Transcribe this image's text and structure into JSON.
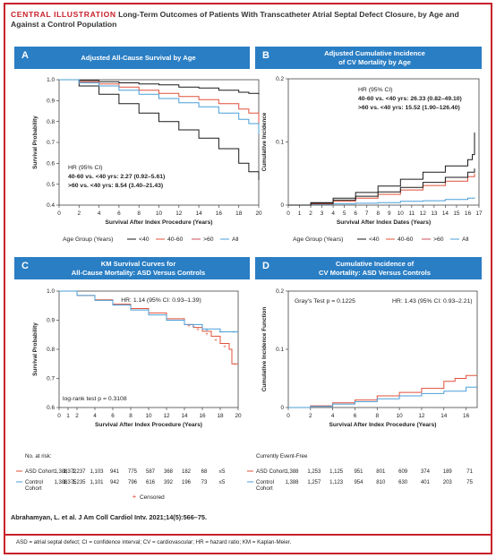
{
  "header": {
    "tag": "CENTRAL ILLUSTRATION",
    "title": "Long-Term Outcomes of Patients With Transcatheter Atrial Septal Defect Closure, by Age and Against a Control Population"
  },
  "panels": [
    {
      "letter": "A",
      "title_lines": [
        "Adjusted All-Cause Survival by Age"
      ]
    },
    {
      "letter": "B",
      "title_lines": [
        "Adjusted Cumulative Incidence",
        "of CV Mortality by Age"
      ]
    },
    {
      "letter": "C",
      "title_lines": [
        "KM Survival Curves for",
        "All-Cause Mortality: ASD Versus Controls"
      ]
    },
    {
      "letter": "D",
      "title_lines": [
        "Cumulative Incidence of",
        "CV Mortality: ASD Versus Controls"
      ]
    }
  ],
  "citation": "Abrahamyan, L. et al. J Am Coll Cardiol Intv. 2021;14(5):566–75.",
  "abbreviations": "ASD = atrial septal defect; CI = confidence interval; CV = cardiovascular; HR = hazard ratio; KM = Kaplan-Meier.",
  "colors": {
    "accent": "#c8202a",
    "banner": "#2a7ec4",
    "lt40": "#1a1a1a",
    "m40_60": "#e0503a",
    "gt60": "#cc4f5a",
    "all": "#4a9fd8",
    "asd": "#e0503a",
    "control": "#4a9fd8"
  },
  "chart_data": [
    {
      "id": "A",
      "type": "line",
      "xlabel": "Survival After Index Procedure (Years)",
      "ylabel": "Survival Probability",
      "xlim": [
        0,
        20
      ],
      "ylim": [
        0.4,
        1.0
      ],
      "xticks": [
        "0",
        "2",
        "4",
        "6",
        "8",
        "10",
        "12",
        "14",
        "16",
        "18",
        "20"
      ],
      "yticks": [
        "0.4",
        "0.5",
        "0.6",
        "0.7",
        "0.8",
        "0.9",
        "1.0"
      ],
      "annotation": [
        "HR (95% CI)",
        "40-60 vs. <40 yrs: 2.27 (0.92–5.61)",
        ">60 vs. <40 yrs: 8.54 (3.40–21.43)"
      ],
      "legend": {
        "title": "Age Group (Years)",
        "entries": [
          "<40",
          "40-60",
          ">60",
          "All"
        ]
      },
      "series": [
        {
          "name": "<40",
          "color": "#1a1a1a",
          "x": [
            0,
            2,
            4,
            6,
            8,
            10,
            12,
            14,
            16,
            18,
            19,
            20
          ],
          "y": [
            1.0,
            0.996,
            0.99,
            0.985,
            0.98,
            0.975,
            0.965,
            0.96,
            0.95,
            0.94,
            0.935,
            0.93
          ]
        },
        {
          "name": "40-60",
          "color": "#e0503a",
          "x": [
            0,
            2,
            4,
            6,
            8,
            10,
            12,
            14,
            16,
            18,
            19,
            20
          ],
          "y": [
            1.0,
            0.99,
            0.98,
            0.965,
            0.95,
            0.935,
            0.92,
            0.905,
            0.885,
            0.86,
            0.84,
            0.79
          ]
        },
        {
          "name": ">60",
          "color": "#1a1a1a",
          "x": [
            0,
            2,
            4,
            6,
            8,
            10,
            12,
            14,
            16,
            18,
            19,
            20
          ],
          "y": [
            1.0,
            0.97,
            0.93,
            0.885,
            0.84,
            0.8,
            0.76,
            0.72,
            0.67,
            0.6,
            0.56,
            0.52
          ]
        },
        {
          "name": "All",
          "color": "#4a9fd8",
          "x": [
            0,
            2,
            4,
            6,
            8,
            10,
            12,
            14,
            16,
            18,
            19,
            20
          ],
          "y": [
            1.0,
            0.985,
            0.97,
            0.95,
            0.93,
            0.91,
            0.89,
            0.87,
            0.84,
            0.81,
            0.79,
            0.74
          ]
        }
      ]
    },
    {
      "id": "B",
      "type": "line",
      "xlabel": "Survival After Index Dates (Years)",
      "ylabel": "Cumulative Incidence",
      "xlim": [
        0,
        17
      ],
      "ylim": [
        0,
        0.2
      ],
      "xticks": [
        "0",
        "1",
        "2",
        "3",
        "4",
        "5",
        "6",
        "7",
        "8",
        "9",
        "10",
        "11",
        "12",
        "13",
        "14",
        "15",
        "16",
        "17"
      ],
      "yticks": [
        "0",
        "0.1",
        "0.2"
      ],
      "annotation": [
        "HR (95% CI)",
        "40-60 vs. <40 yrs: 26.33 (0.82–49.10)",
        ">60 vs. <40 yrs: 15.52 (1.90–126.40)"
      ],
      "legend": {
        "title": "Age Group (Years)",
        "entries": [
          "<40",
          "40-60",
          ">60",
          "All"
        ]
      },
      "series": [
        {
          "name": "<40",
          "color": "#4a9fd8",
          "x": [
            0,
            2,
            4,
            6,
            8,
            10,
            12,
            14,
            16,
            16.6
          ],
          "y": [
            0,
            0.001,
            0.002,
            0.003,
            0.004,
            0.006,
            0.007,
            0.009,
            0.011,
            0.012
          ]
        },
        {
          "name": "40-60",
          "color": "#e0503a",
          "x": [
            0,
            2,
            4,
            6,
            8,
            10,
            12,
            14,
            16,
            16.6
          ],
          "y": [
            0,
            0.002,
            0.006,
            0.011,
            0.017,
            0.024,
            0.031,
            0.038,
            0.045,
            0.05
          ]
        },
        {
          "name": ">60",
          "color": "#1a1a1a",
          "x": [
            0,
            2,
            4,
            6,
            8,
            10,
            12,
            14,
            16,
            16.4,
            16.6
          ],
          "y": [
            0,
            0.004,
            0.011,
            0.02,
            0.03,
            0.041,
            0.052,
            0.062,
            0.072,
            0.08,
            0.115
          ]
        },
        {
          "name": "All",
          "color": "#1a1a1a",
          "x": [
            0,
            2,
            4,
            6,
            8,
            10,
            12,
            14,
            16,
            16.6
          ],
          "y": [
            0,
            0.003,
            0.008,
            0.014,
            0.021,
            0.028,
            0.036,
            0.044,
            0.052,
            0.058
          ]
        }
      ]
    },
    {
      "id": "C",
      "type": "line",
      "xlabel": "Survival After Index Procedure (Years)",
      "ylabel": "Survival Probability",
      "xlim": [
        0,
        20
      ],
      "ylim": [
        0.6,
        1.0
      ],
      "xticks": [
        "0",
        "1",
        "2",
        "4",
        "6",
        "8",
        "10",
        "12",
        "14",
        "16",
        "18",
        "20"
      ],
      "yticks": [
        "0.6",
        "0.7",
        "0.8",
        "0.9",
        "1.0"
      ],
      "annotation_top": "HR: 1.14 (95% CI: 0.93–1.39)",
      "annotation_bottom": "log-rank test p = 0.3108",
      "censored_label": "Censored",
      "series": [
        {
          "name": "ASD Cohort",
          "color": "#e0503a",
          "x": [
            0,
            2,
            4,
            6,
            8,
            10,
            12,
            14,
            15,
            16,
            17,
            18,
            19,
            19.3,
            20
          ],
          "y": [
            1.0,
            0.985,
            0.97,
            0.955,
            0.94,
            0.925,
            0.905,
            0.885,
            0.875,
            0.862,
            0.845,
            0.82,
            0.8,
            0.75,
            0.75
          ]
        },
        {
          "name": "Control Cohort",
          "color": "#4a9fd8",
          "x": [
            0,
            2,
            4,
            6,
            8,
            10,
            12,
            14,
            16,
            18,
            20
          ],
          "y": [
            1.0,
            0.985,
            0.968,
            0.952,
            0.935,
            0.918,
            0.9,
            0.885,
            0.87,
            0.86,
            0.86
          ]
        }
      ],
      "risk_table": {
        "title": "No. at risk:",
        "rows": [
          {
            "label": "ASD Cohort",
            "values": [
              "1,388",
              "1,372",
              "1,237",
              "1,103",
              "941",
              "775",
              "587",
              "368",
              "182",
              "68",
              "≤5"
            ]
          },
          {
            "label": "Control Cohort",
            "values": [
              "1,388",
              "1,375",
              "1,235",
              "1,101",
              "942",
              "796",
              "616",
              "392",
              "196",
              "73",
              "≤5"
            ]
          }
        ]
      }
    },
    {
      "id": "D",
      "type": "line",
      "xlabel": "Survival After Index Procedure (Years)",
      "ylabel": "Cumulative Incidence Function",
      "xlim": [
        0,
        17
      ],
      "ylim": [
        0,
        0.2
      ],
      "xticks": [
        "0",
        "2",
        "4",
        "6",
        "8",
        "10",
        "12",
        "14",
        "16"
      ],
      "yticks": [
        "0",
        "0.1",
        "0.2"
      ],
      "annotation_left": "Gray's Test p = 0.1225",
      "annotation_right": "HR: 1.43 (95% CI: 0.93–2.21)",
      "series": [
        {
          "name": "ASD Cohort",
          "color": "#e0503a",
          "x": [
            0,
            2,
            4,
            6,
            8,
            10,
            12,
            14,
            15,
            16,
            17
          ],
          "y": [
            0,
            0.003,
            0.008,
            0.013,
            0.02,
            0.026,
            0.033,
            0.045,
            0.05,
            0.055,
            0.055
          ]
        },
        {
          "name": "Control Cohort",
          "color": "#4a9fd8",
          "x": [
            0,
            2,
            4,
            6,
            8,
            10,
            12,
            14,
            16,
            17
          ],
          "y": [
            0,
            0.002,
            0.006,
            0.01,
            0.015,
            0.02,
            0.024,
            0.028,
            0.035,
            0.035
          ]
        }
      ],
      "risk_table": {
        "title": "Currently Event-Free",
        "rows": [
          {
            "label": "ASD Cohort",
            "values": [
              "1,388",
              "1,253",
              "1,125",
              "951",
              "801",
              "609",
              "374",
              "189",
              "71"
            ]
          },
          {
            "label": "Control Cohort",
            "values": [
              "1,388",
              "1,257",
              "1,123",
              "954",
              "810",
              "630",
              "401",
              "203",
              "75"
            ]
          }
        ]
      }
    }
  ]
}
